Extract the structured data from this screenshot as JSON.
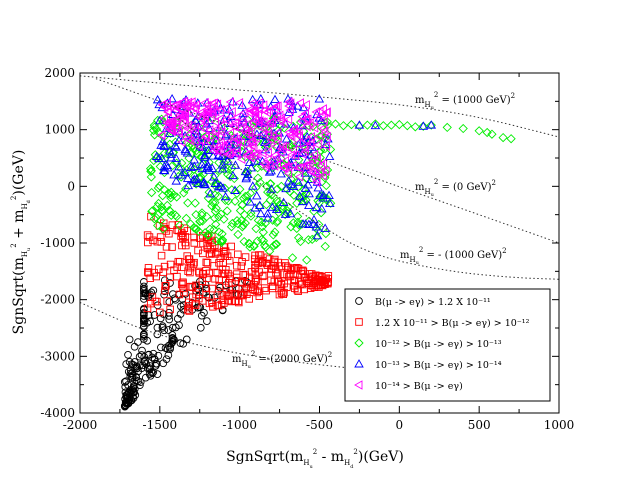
{
  "chart_data": {
    "type": "scatter",
    "title": "",
    "xlim": [
      -2000,
      1000
    ],
    "ylim": [
      -4000,
      2000
    ],
    "x_ticks": [
      -2000,
      -1500,
      -1000,
      -500,
      0,
      500,
      1000
    ],
    "y_ticks": [
      -4000,
      -3000,
      -2000,
      -1000,
      0,
      1000,
      2000
    ],
    "x_tick_labels": [
      "-2000",
      "-1500",
      "-1000",
      "-500",
      "0",
      "500",
      "1000"
    ],
    "y_tick_labels": [
      "-4000",
      "-3000",
      "-2000",
      "-1000",
      "0",
      "1000",
      "2000"
    ],
    "xlabel": "SgnSqrt(mHu² - mHd²)(GeV)",
    "ylabel": "SgnSqrt(mHu² + mHd²)(GeV)",
    "grid": false,
    "legend_position": "bottom-right",
    "contours": [
      {
        "label": "mHu² = (1000 GeV)²",
        "points": [
          [
            -2000,
            1950
          ],
          [
            -1500,
            1820
          ],
          [
            -1000,
            1700
          ],
          [
            -500,
            1580
          ],
          [
            0,
            1450
          ],
          [
            500,
            1230
          ],
          [
            1000,
            870
          ]
        ]
      },
      {
        "label": "mHu² = (0 GeV)²",
        "points": [
          [
            -1900,
            1900
          ],
          [
            -1500,
            1500
          ],
          [
            -1000,
            1000
          ],
          [
            -500,
            500
          ],
          [
            0,
            -10
          ],
          [
            500,
            -500
          ],
          [
            1000,
            -1000
          ]
        ]
      },
      {
        "label": "mHu² = - (1000 GeV)²",
        "points": [
          [
            -1400,
            1250
          ],
          [
            -1000,
            300
          ],
          [
            -600,
            -500
          ],
          [
            -200,
            -1200
          ],
          [
            300,
            -1500
          ],
          [
            700,
            -1610
          ],
          [
            1000,
            -1640
          ]
        ]
      },
      {
        "label": "mHu² =-(2000 GeV)²",
        "points": [
          [
            -2000,
            -2050
          ],
          [
            -1600,
            -2550
          ],
          [
            -1200,
            -2850
          ],
          [
            -800,
            -3050
          ],
          [
            -400,
            -3180
          ],
          [
            0,
            -3300
          ],
          [
            400,
            -3400
          ],
          [
            700,
            -3450
          ]
        ]
      }
    ],
    "annotations": [
      {
        "base": "m",
        "sub": "H",
        "subsub": "u",
        "sup": "2",
        "rest": " = (1000 GeV)",
        "rest_sup": "2"
      },
      {
        "base": "m",
        "sub": "H",
        "subsub": "u",
        "sup": "2",
        "rest": " = (0 GeV)",
        "rest_sup": "2"
      },
      {
        "base": "m",
        "sub": "H",
        "subsub": "u",
        "sup": "2",
        "rest": " = - (1000 GeV)",
        "rest_sup": "2"
      },
      {
        "base": "m",
        "sub": "H",
        "subsub": "u",
        "sup": "2",
        "rest": " =-(2000 GeV)",
        "rest_sup": "2"
      }
    ],
    "series": [
      {
        "name": "B(μ -> eγ) > 1.2 X 10⁻¹¹",
        "marker": "circle",
        "color": "#000000",
        "region": {
          "xmin": -1720,
          "xmax": -900,
          "ybot": -3900,
          "ytop": -1650
        },
        "count": 230
      },
      {
        "name": "1.2 X 10⁻¹¹ > B(μ -> eγ) > 10⁻¹²",
        "marker": "square",
        "color": "#ff0000",
        "region": {
          "xmin": -1580,
          "xmax": -430,
          "ybot": -2350,
          "ytop": -450
        },
        "count": 330
      },
      {
        "name": "10⁻¹² > B(μ -> eγ) > 10⁻¹³",
        "marker": "diamond",
        "color": "#00ee00",
        "region": {
          "xmin": -1560,
          "xmax": -430,
          "ybot": -1450,
          "ytop": 1250
        },
        "count": 420,
        "extra": [
          [
            -450,
            1080
          ],
          [
            -400,
            1100
          ],
          [
            -350,
            1070
          ],
          [
            -300,
            1090
          ],
          [
            -250,
            1060
          ],
          [
            -200,
            1080
          ],
          [
            -150,
            1100
          ],
          [
            -100,
            1070
          ],
          [
            -50,
            1080
          ],
          [
            0,
            1090
          ],
          [
            50,
            1070
          ],
          [
            100,
            1050
          ],
          [
            150,
            1060
          ],
          [
            200,
            1080
          ],
          [
            300,
            1040
          ],
          [
            400,
            1020
          ],
          [
            500,
            980
          ],
          [
            550,
            950
          ],
          [
            580,
            920
          ],
          [
            650,
            860
          ],
          [
            700,
            840
          ]
        ]
      },
      {
        "name": "10⁻¹³ > B(μ -> eγ) > 10⁻¹⁴",
        "marker": "triangle-up",
        "color": "#0000ff",
        "region": {
          "xmin": -1520,
          "xmax": -430,
          "ybot": -1000,
          "ytop": 1600
        },
        "count": 260,
        "extra": [
          [
            -250,
            1080
          ],
          [
            -150,
            1070
          ],
          [
            150,
            1060
          ],
          [
            200,
            1080
          ]
        ]
      },
      {
        "name": "10⁻¹⁴ > B(μ -> eγ)",
        "marker": "triangle-left",
        "color": "#ff00ff",
        "region": {
          "xmin": -1500,
          "xmax": -450,
          "ybot": 0,
          "ytop": 1550
        },
        "count": 300
      }
    ]
  }
}
